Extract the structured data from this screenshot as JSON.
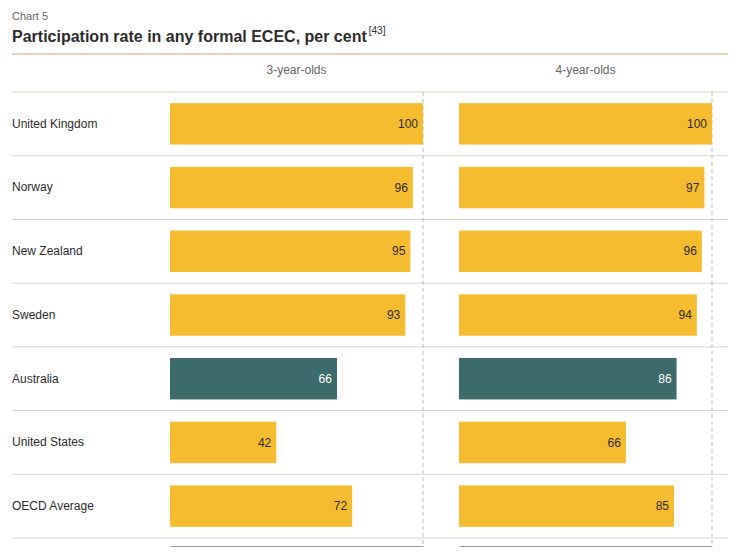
{
  "chart_data": {
    "type": "bar",
    "orientation": "horizontal",
    "title": "Participation rate in any formal ECEC, per cent",
    "annotations": [
      "Chart 5",
      "[43]"
    ],
    "categories": [
      "United Kingdom",
      "Norway",
      "New Zealand",
      "Sweden",
      "Australia",
      "United States",
      "OECD Average"
    ],
    "series": [
      {
        "name": "3-year-olds",
        "values": [
          100,
          96,
          95,
          93,
          66,
          42,
          72
        ],
        "colors": [
          "#f5bc2f",
          "#f5bc2f",
          "#f5bc2f",
          "#f5bc2f",
          "#3d6b6b",
          "#f5bc2f",
          "#f5bc2f"
        ]
      },
      {
        "name": "4-year-olds",
        "values": [
          100,
          97,
          96,
          94,
          86,
          66,
          85
        ],
        "colors": [
          "#f5bc2f",
          "#f5bc2f",
          "#f5bc2f",
          "#f5bc2f",
          "#3d6b6b",
          "#f5bc2f",
          "#f5bc2f"
        ]
      }
    ],
    "xlim": [
      0,
      100
    ],
    "data_labels": true,
    "tick_labels": "y",
    "grid": false
  }
}
